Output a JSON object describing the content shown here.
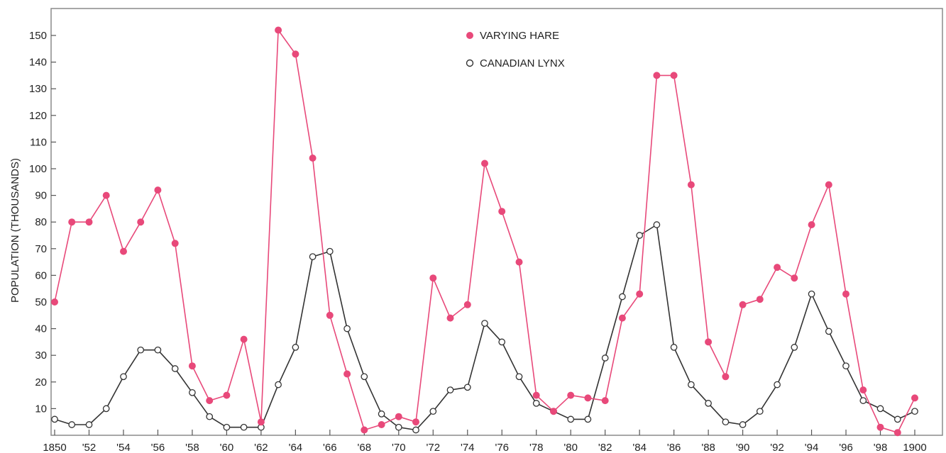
{
  "chart_data": {
    "type": "line",
    "title": "",
    "xlabel": "",
    "ylabel": "POPULATION (THOUSANDS)",
    "x": [
      1850,
      1851,
      1852,
      1853,
      1854,
      1855,
      1856,
      1857,
      1858,
      1859,
      1860,
      1861,
      1862,
      1863,
      1864,
      1865,
      1866,
      1867,
      1868,
      1869,
      1870,
      1871,
      1872,
      1873,
      1874,
      1875,
      1876,
      1877,
      1878,
      1879,
      1880,
      1881,
      1882,
      1883,
      1884,
      1885,
      1886,
      1887,
      1888,
      1889,
      1890,
      1891,
      1892,
      1893,
      1894,
      1895,
      1896,
      1897,
      1898,
      1899,
      1900
    ],
    "x_tick_values": [
      1850,
      1852,
      1854,
      1856,
      1858,
      1860,
      1862,
      1864,
      1866,
      1868,
      1870,
      1872,
      1874,
      1876,
      1878,
      1880,
      1882,
      1884,
      1886,
      1888,
      1890,
      1892,
      1894,
      1896,
      1898,
      1900
    ],
    "x_tick_labels": [
      "1850",
      "'52",
      "'54",
      "'56",
      "'58",
      "'60",
      "'62",
      "'64",
      "'66",
      "'68",
      "'70",
      "'72",
      "'74",
      "'76",
      "'78",
      "'80",
      "'82",
      "'84",
      "'86",
      "'88",
      "'90",
      "'92",
      "'94",
      "'96",
      "'98",
      "1900"
    ],
    "y_tick_values": [
      10,
      20,
      30,
      40,
      50,
      60,
      70,
      80,
      90,
      100,
      110,
      120,
      130,
      140,
      150
    ],
    "y_tick_labels": [
      "10",
      "20",
      "30",
      "40",
      "50",
      "60",
      "70",
      "80",
      "90",
      "100",
      "110",
      "120",
      "130",
      "140",
      "150"
    ],
    "xlim": [
      1850,
      1901.7
    ],
    "ylim": [
      0,
      160
    ],
    "grid": false,
    "legend_position": "top-center",
    "series": [
      {
        "name": "VARYING HARE",
        "color": "#e8497a",
        "marker": "filled-circle",
        "values": [
          50,
          80,
          80,
          90,
          69,
          80,
          92,
          72,
          26,
          13,
          15,
          36,
          5,
          152,
          143,
          104,
          45,
          23,
          2,
          4,
          7,
          5,
          59,
          44,
          49,
          102,
          84,
          65,
          15,
          9,
          15,
          14,
          13,
          44,
          53,
          135,
          135,
          94,
          35,
          22,
          49,
          51,
          63,
          59,
          79,
          94,
          53,
          17,
          3,
          1,
          14
        ]
      },
      {
        "name": "CANADIAN LYNX",
        "color": "#333333",
        "marker": "open-circle",
        "values": [
          6,
          4,
          4,
          10,
          22,
          32,
          32,
          25,
          16,
          7,
          3,
          3,
          3,
          19,
          33,
          67,
          69,
          40,
          22,
          8,
          3,
          2,
          9,
          17,
          18,
          42,
          35,
          22,
          12,
          9,
          6,
          6,
          29,
          52,
          75,
          79,
          33,
          19,
          12,
          5,
          4,
          9,
          19,
          33,
          53,
          39,
          26,
          13,
          10,
          6,
          9
        ]
      }
    ]
  }
}
